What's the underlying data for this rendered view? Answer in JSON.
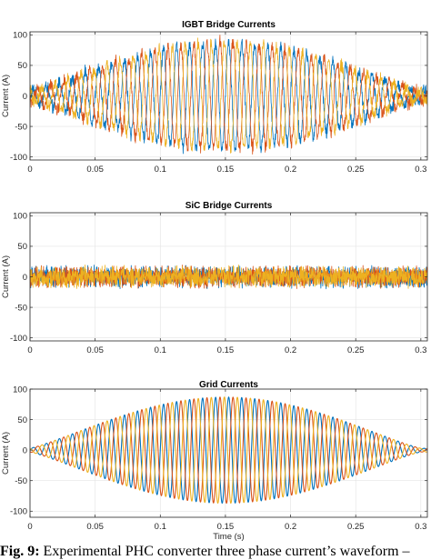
{
  "colors": {
    "phase_a": "#0072BD",
    "phase_b": "#D95319",
    "phase_c": "#EDB120"
  },
  "chart_data": [
    {
      "type": "line",
      "title": "IGBT Bridge Currents",
      "xlabel": "",
      "ylabel": "Current (A)",
      "xlim": [
        0,
        0.305
      ],
      "ylim": [
        -105,
        105
      ],
      "xticks": [
        "0",
        "0.05",
        "0.1",
        "0.15",
        "0.2",
        "0.25",
        "0.3"
      ],
      "yticks": [
        "100",
        "50",
        "0",
        "-50",
        "-100"
      ],
      "grid": true,
      "waveform": {
        "frequency_hz": 100,
        "envelope_peak_a": 88,
        "envelope_start_a": 8,
        "envelope_peak_time_s": 0.15,
        "ripple_a": 9,
        "noise_a": 4
      },
      "series": [
        {
          "phase_deg": 0,
          "color": "#0072BD"
        },
        {
          "phase_deg": -120,
          "color": "#D95319"
        },
        {
          "phase_deg": 120,
          "color": "#EDB120"
        }
      ]
    },
    {
      "type": "line",
      "title": "SiC Bridge Currents",
      "xlabel": "",
      "ylabel": "Current (A)",
      "xlim": [
        0,
        0.305
      ],
      "ylim": [
        -105,
        105
      ],
      "xticks": [
        "0",
        "0.05",
        "0.1",
        "0.15",
        "0.2",
        "0.25",
        "0.3"
      ],
      "yticks": [
        "100",
        "50",
        "0",
        "-50",
        "-100"
      ],
      "grid": true,
      "waveform": {
        "frequency_hz": 100,
        "envelope_peak_a": 0,
        "envelope_start_a": 0,
        "envelope_peak_time_s": 0.15,
        "ripple_a": 14,
        "noise_a": 6
      },
      "series": [
        {
          "phase_deg": 0,
          "color": "#0072BD"
        },
        {
          "phase_deg": -120,
          "color": "#D95319"
        },
        {
          "phase_deg": 120,
          "color": "#EDB120"
        }
      ]
    },
    {
      "type": "line",
      "title": "Grid Currents",
      "xlabel": "Time (s)",
      "ylabel": "Current (A)",
      "xlim": [
        0,
        0.305
      ],
      "ylim": [
        -110,
        100
      ],
      "xticks": [
        "0",
        "0.05",
        "0.1",
        "0.15",
        "0.2",
        "0.25",
        "0.3"
      ],
      "yticks": [
        "100",
        "50",
        "0",
        "-50",
        "-100"
      ],
      "grid": true,
      "waveform": {
        "frequency_hz": 100,
        "envelope_peak_a": 87,
        "envelope_start_a": 3,
        "envelope_peak_time_s": 0.15,
        "ripple_a": 0,
        "noise_a": 0
      },
      "series": [
        {
          "phase_deg": 0,
          "color": "#0072BD"
        },
        {
          "phase_deg": -120,
          "color": "#D95319"
        },
        {
          "phase_deg": 120,
          "color": "#EDB120"
        }
      ]
    }
  ],
  "caption": {
    "label": "Fig. 9:",
    "text": "Experimental PHC converter three phase current’s waveform –"
  }
}
